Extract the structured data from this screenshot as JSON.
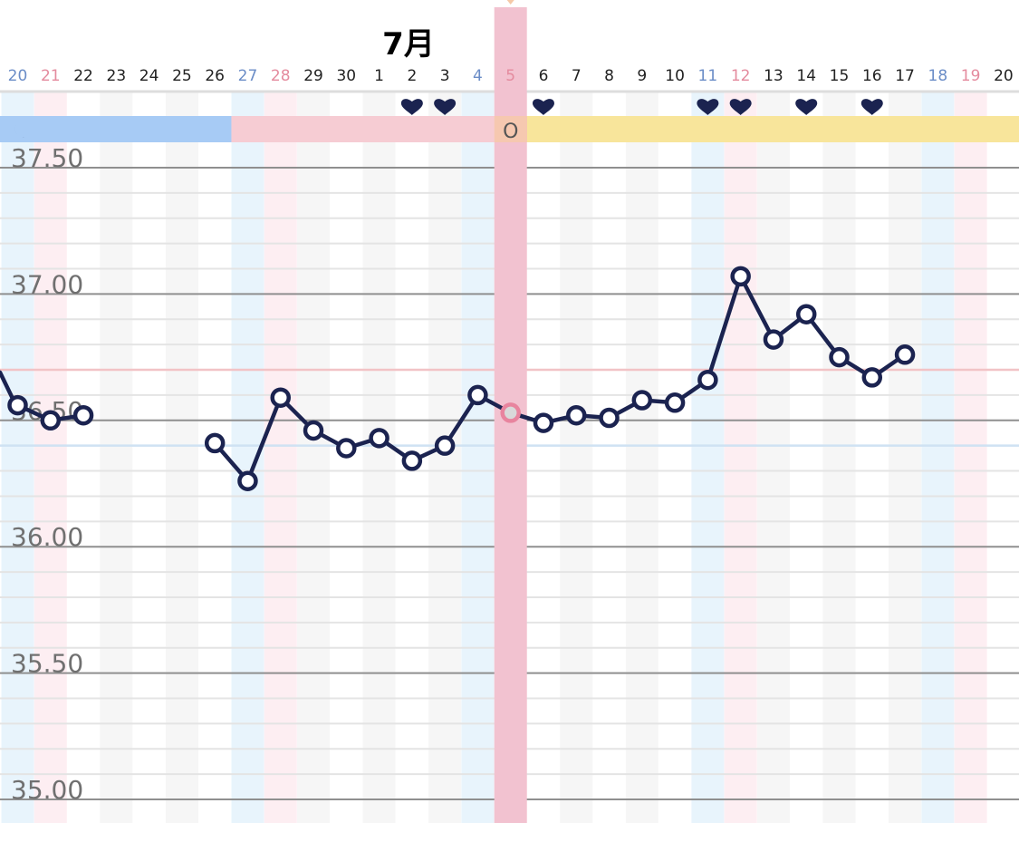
{
  "chart_data": {
    "type": "line",
    "title": "",
    "month_label": "7月",
    "ylim": [
      34.95,
      37.63
    ],
    "y_ticks": [
      {
        "value": 37.5,
        "label": "37.50"
      },
      {
        "value": 37.0,
        "label": "37.00"
      },
      {
        "value": 36.5,
        "label": "36.50"
      },
      {
        "value": 36.0,
        "label": "36.00"
      },
      {
        "value": 35.5,
        "label": "35.50"
      },
      {
        "value": 35.0,
        "label": "35.00"
      }
    ],
    "days": [
      {
        "label": "20",
        "kind": "sat"
      },
      {
        "label": "21",
        "kind": "sun"
      },
      {
        "label": "22",
        "kind": "weekday"
      },
      {
        "label": "23",
        "kind": "weekday"
      },
      {
        "label": "24",
        "kind": "weekday"
      },
      {
        "label": "25",
        "kind": "weekday"
      },
      {
        "label": "26",
        "kind": "weekday"
      },
      {
        "label": "27",
        "kind": "sat"
      },
      {
        "label": "28",
        "kind": "sun"
      },
      {
        "label": "29",
        "kind": "weekday"
      },
      {
        "label": "30",
        "kind": "weekday"
      },
      {
        "label": "1",
        "kind": "weekday"
      },
      {
        "label": "2",
        "kind": "weekday"
      },
      {
        "label": "3",
        "kind": "weekday"
      },
      {
        "label": "4",
        "kind": "sat"
      },
      {
        "label": "5",
        "kind": "sun"
      },
      {
        "label": "6",
        "kind": "weekday"
      },
      {
        "label": "7",
        "kind": "weekday"
      },
      {
        "label": "8",
        "kind": "weekday"
      },
      {
        "label": "9",
        "kind": "weekday"
      },
      {
        "label": "10",
        "kind": "weekday"
      },
      {
        "label": "11",
        "kind": "sat"
      },
      {
        "label": "12",
        "kind": "sun"
      },
      {
        "label": "13",
        "kind": "weekday"
      },
      {
        "label": "14",
        "kind": "weekday"
      },
      {
        "label": "15",
        "kind": "weekday"
      },
      {
        "label": "16",
        "kind": "weekday"
      },
      {
        "label": "17",
        "kind": "weekday"
      },
      {
        "label": "18",
        "kind": "sat"
      },
      {
        "label": "19",
        "kind": "sun"
      },
      {
        "label": "20",
        "kind": "weekday"
      }
    ],
    "month_start_index": 11,
    "highlight_index": 15,
    "heart_indices": [
      12,
      13,
      16,
      21,
      22,
      24,
      26
    ],
    "phase_bars": [
      {
        "from": 0,
        "to": 7,
        "phase": "menstruation",
        "icon": "moon-icon",
        "text": ""
      },
      {
        "from": 7,
        "to": 15,
        "phase": "follicular",
        "icon": "",
        "text": ""
      },
      {
        "from": 15,
        "to": 16,
        "phase": "ovulation",
        "icon": "",
        "text": "O"
      },
      {
        "from": 16,
        "to": 31,
        "phase": "luteal",
        "icon": "",
        "text": ""
      }
    ],
    "reference_lines": [
      {
        "value": 36.7,
        "color": "#f2c3c6"
      },
      {
        "value": 36.4,
        "color": "#cfe2f3"
      }
    ],
    "series": [
      {
        "values": [
          36.56,
          36.5,
          36.52,
          null,
          null,
          null,
          36.41,
          36.26,
          36.59,
          36.46,
          36.39,
          36.43,
          36.34,
          36.4,
          36.6,
          36.53,
          36.49,
          36.52,
          36.51,
          36.58,
          36.57,
          36.66,
          37.07,
          36.82,
          36.92,
          36.75,
          36.67,
          36.76
        ]
      }
    ],
    "lead_in_value": 36.69,
    "colors": {
      "line": "#1b2350",
      "sat_band": "#e8f4fc",
      "sun_band": "#fdeef2",
      "weekday_band": "#f6f6f6",
      "highlight_band": "#f2c2d0",
      "highlight_marker": "#e8849e",
      "menstruation": "#a7cbf5",
      "follicular": "#f6ccd3",
      "ovulation": "#f6c8b0",
      "luteal": "#f8e59b",
      "sat_text": "#6b8dc7",
      "sun_text": "#e48b9e",
      "weekday_text": "#222222",
      "grid_major": "#8f8f8f",
      "grid_minor": "#e4e4e4"
    }
  }
}
